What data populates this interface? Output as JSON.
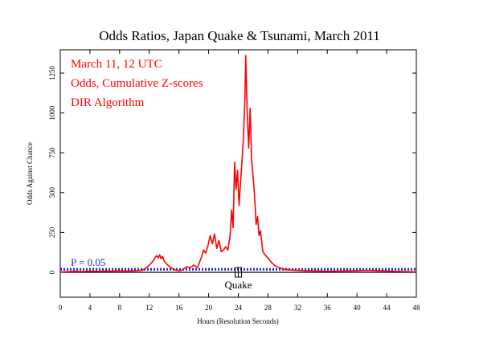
{
  "chart_data": {
    "type": "line",
    "title": "Odds Ratios, Japan Quake & Tsunami, March 2011",
    "xlabel": "Hours (Resolution Seconds)",
    "ylabel": "Odds Against Chance",
    "xlim": [
      0,
      48
    ],
    "ylim": [
      -150,
      1380
    ],
    "x_ticks": [
      0,
      4,
      8,
      12,
      16,
      20,
      24,
      28,
      32,
      36,
      40,
      44,
      48
    ],
    "y_ticks": [
      0,
      250,
      500,
      750,
      1000,
      1250
    ],
    "grid": false,
    "annotations": [
      "March 11, 12 UTC",
      "Odds, Cumulative Z-scores",
      "DIR Algorithm"
    ],
    "reference_line": {
      "label": "P = 0.05",
      "value": 19,
      "color": "#1f1fd0",
      "style": "dotted"
    },
    "event_label": "Quake",
    "event_hour": 24,
    "series": [
      {
        "color": "#ff0000",
        "x": [
          0,
          1,
          2,
          3,
          4,
          5,
          6,
          7,
          8,
          9,
          10,
          11,
          11.5,
          12,
          12.5,
          12.8,
          13,
          13.2,
          13.4,
          13.6,
          13.8,
          14,
          14.5,
          15,
          15.5,
          16,
          16.5,
          17,
          17.5,
          18,
          18.5,
          19,
          19.3,
          19.6,
          19.9,
          20.2,
          20.5,
          20.8,
          21.1,
          21.4,
          21.7,
          22,
          22.3,
          22.6,
          22.9,
          23.1,
          23.3,
          23.5,
          23.7,
          23.9,
          24.1,
          24.3,
          24.5,
          24.7,
          24.9,
          25,
          25.2,
          25.4,
          25.6,
          25.8,
          26,
          26.2,
          26.4,
          26.6,
          26.8,
          27,
          27.3,
          27.6,
          28,
          28.5,
          29,
          29.5,
          30,
          31,
          32,
          33,
          34,
          35,
          36,
          37,
          38,
          39,
          40,
          41,
          42,
          43,
          44,
          45,
          46,
          47,
          48
        ],
        "y": [
          2,
          4,
          6,
          5,
          7,
          6,
          8,
          7,
          9,
          8,
          10,
          12,
          25,
          45,
          70,
          95,
          105,
          90,
          110,
          85,
          100,
          70,
          45,
          25,
          15,
          10,
          15,
          35,
          30,
          45,
          30,
          90,
          140,
          120,
          165,
          230,
          180,
          240,
          150,
          200,
          130,
          140,
          160,
          140,
          230,
          390,
          280,
          690,
          520,
          640,
          420,
          560,
          700,
          850,
          1100,
          1360,
          1000,
          780,
          1030,
          700,
          600,
          480,
          300,
          350,
          230,
          260,
          130,
          110,
          90,
          60,
          40,
          30,
          20,
          15,
          12,
          10,
          8,
          8,
          6,
          7,
          8,
          9,
          10,
          12,
          11,
          9,
          8,
          6,
          5,
          4,
          3
        ]
      }
    ]
  }
}
